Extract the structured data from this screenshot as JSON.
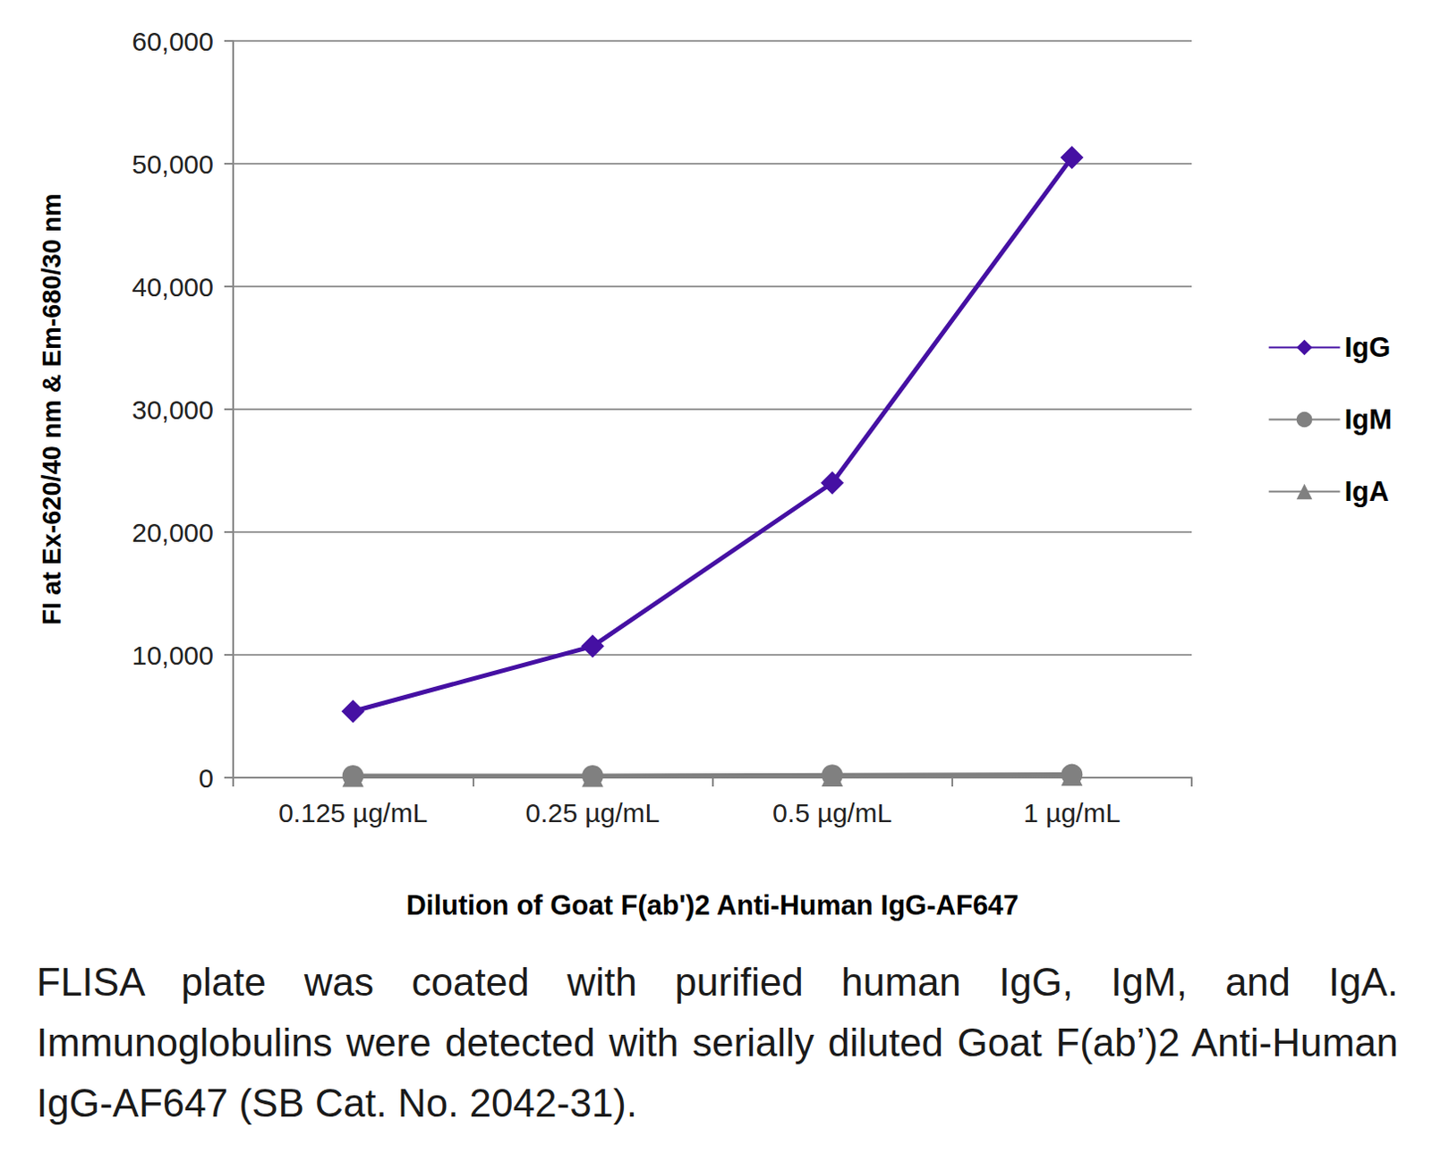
{
  "chart_data": {
    "type": "line",
    "x_label": "Dilution of Goat F(ab')2 Anti-Human IgG-AF647",
    "y_label": "FI at Ex-620/40 nm & Em-680/30 nm",
    "caption": "FLISA plate was coated with purified human IgG, IgM, and IgA. Immunoglobulins were detected with serially diluted Goat F(ab’)2 Anti-Human IgG-AF647 (SB Cat. No. 2042-31).",
    "categories": [
      "0.125 µg/mL",
      "0.25 µg/mL",
      "0.5 µg/mL",
      "1 µg/mL"
    ],
    "series": [
      {
        "name": "IgG",
        "color": "#4510a3",
        "marker": "diamond",
        "values": [
          5400,
          10700,
          24000,
          50500
        ]
      },
      {
        "name": "IgM",
        "color": "#808080",
        "marker": "circle",
        "values": [
          150,
          150,
          200,
          250
        ]
      },
      {
        "name": "IgA",
        "color": "#808080",
        "marker": "triangle",
        "values": [
          100,
          100,
          150,
          200
        ]
      }
    ],
    "ylim": [
      0,
      60000
    ],
    "yticks": [
      0,
      10000,
      20000,
      30000,
      40000,
      50000,
      60000
    ],
    "grid": true,
    "legend": "right"
  }
}
